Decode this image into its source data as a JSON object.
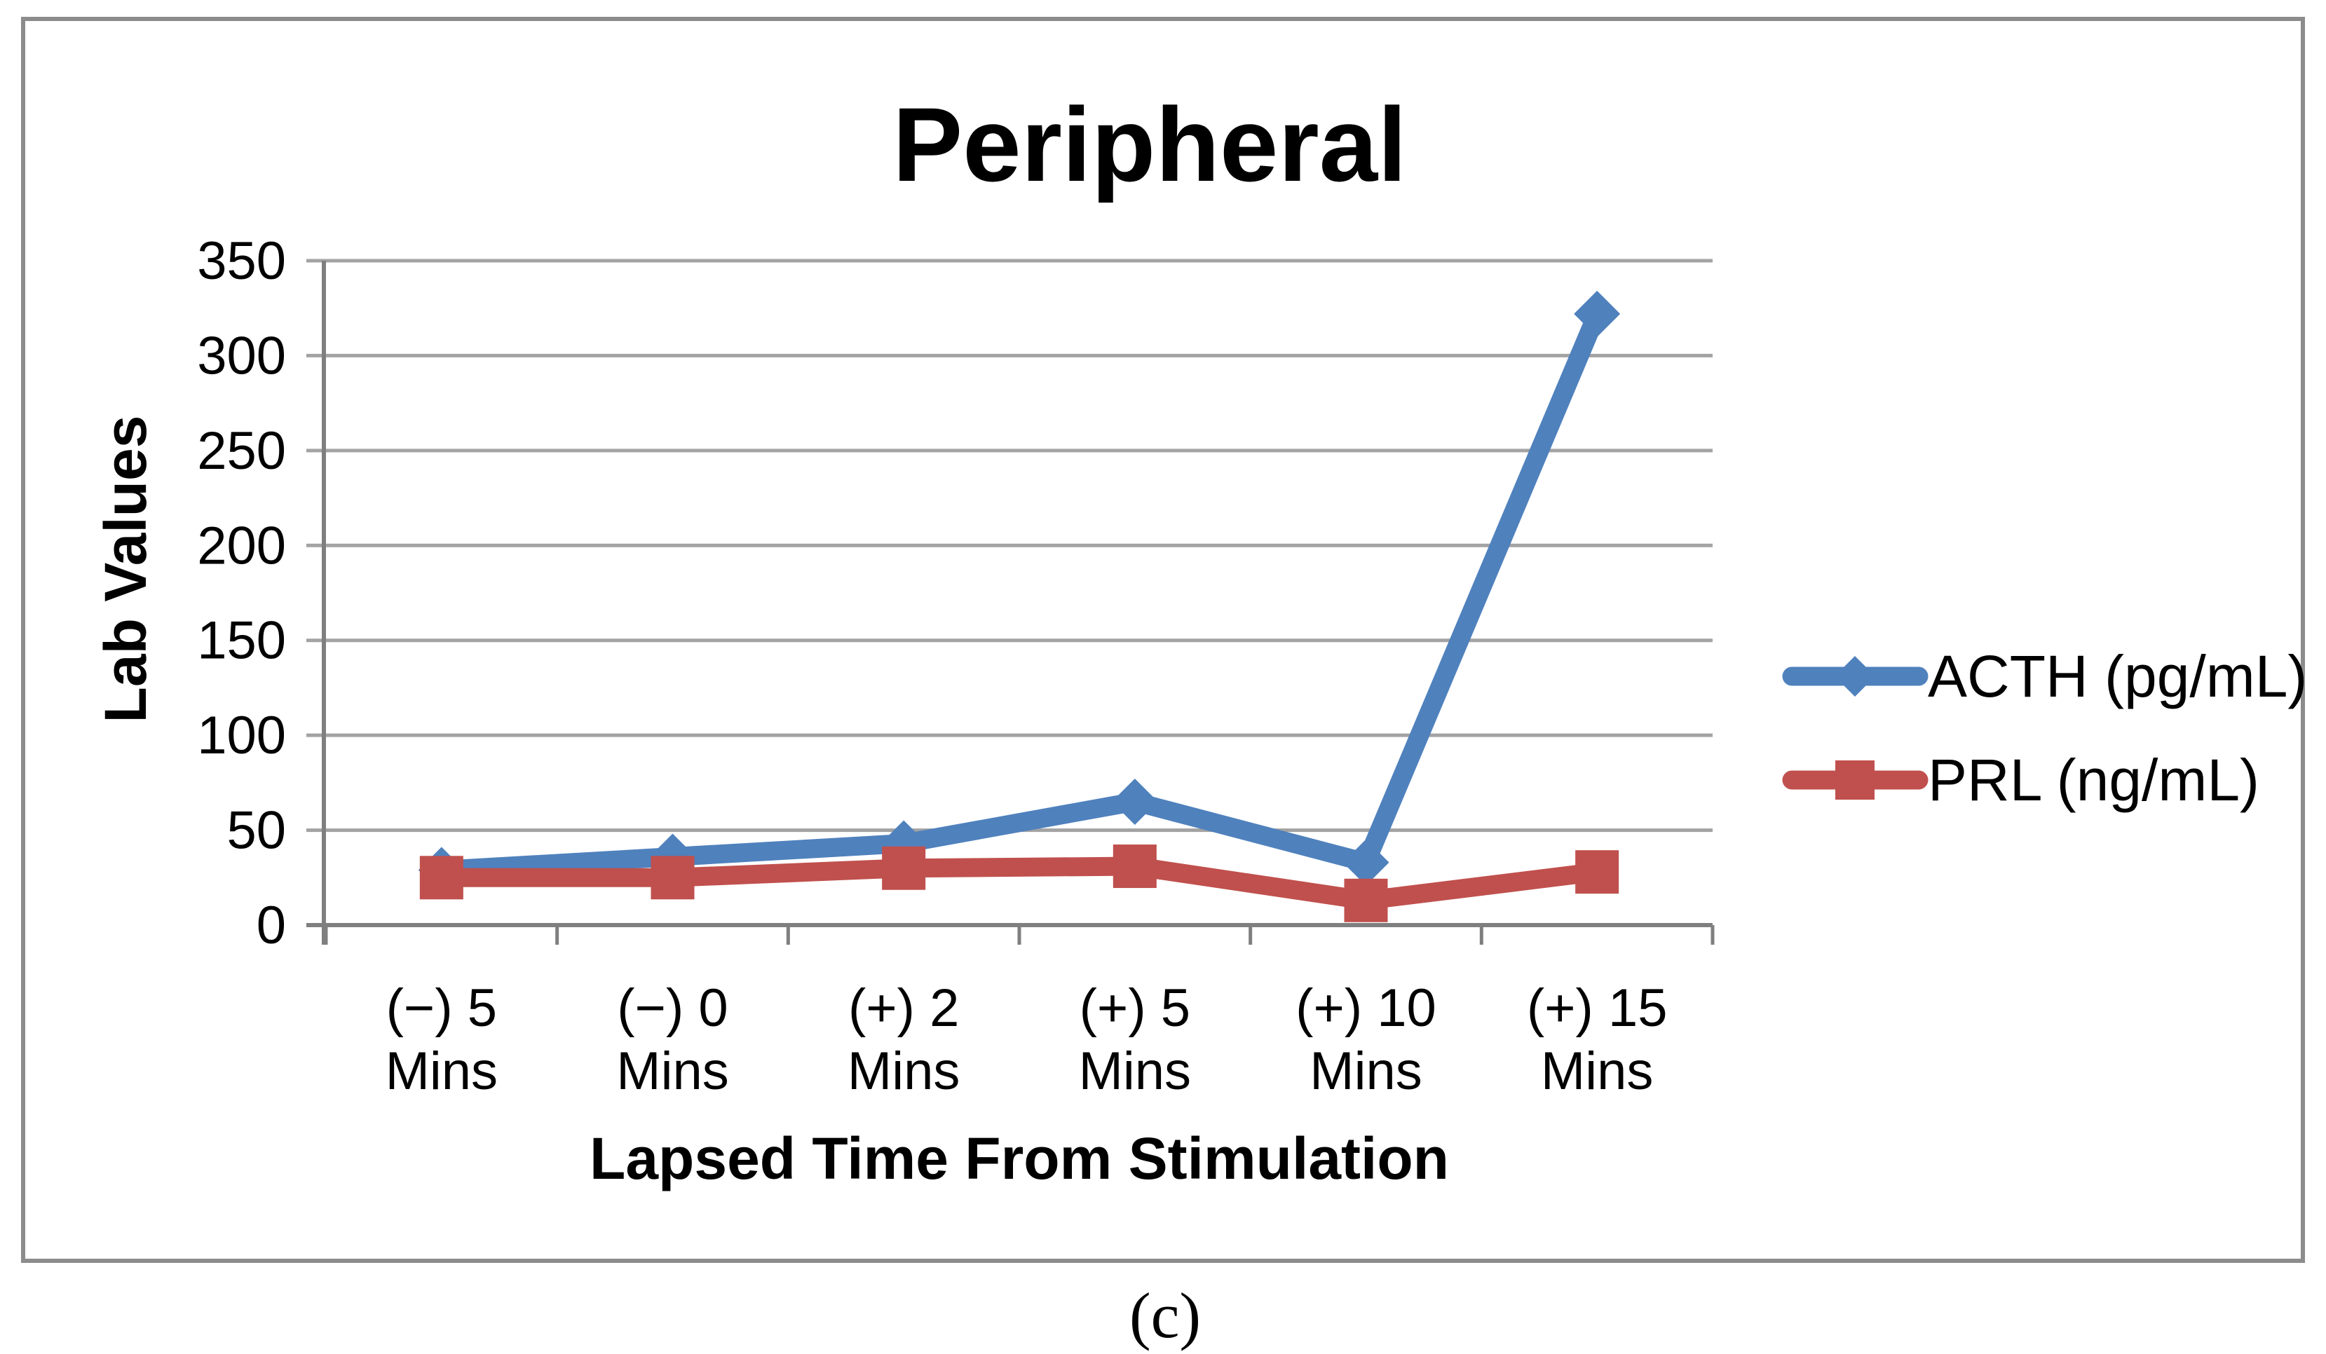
{
  "chart": {
    "caption": "(c)"
  },
  "chart_data": {
    "type": "line",
    "title": "Peripheral",
    "xlabel": "Lapsed Time From Stimulation",
    "ylabel": "Lab Values",
    "categories": [
      {
        "line1": "(−) 5",
        "line2": "Mins"
      },
      {
        "line1": "(−) 0",
        "line2": "Mins"
      },
      {
        "line1": "(+) 2",
        "line2": "Mins"
      },
      {
        "line1": "(+) 5",
        "line2": "Mins"
      },
      {
        "line1": "(+) 10",
        "line2": "Mins"
      },
      {
        "line1": "(+) 15",
        "line2": "Mins"
      }
    ],
    "series": [
      {
        "name": "ACTH (pg/mL)",
        "id": "acth",
        "color": "#4F81BD",
        "marker": "diamond",
        "values": [
          29,
          36,
          43,
          65,
          33,
          322
        ]
      },
      {
        "name": "PRL (ng/mL)",
        "id": "prl",
        "color": "#C0504D",
        "marker": "square",
        "values": [
          25,
          25,
          30,
          31,
          13,
          28
        ]
      }
    ],
    "ylim": [
      0,
      350
    ],
    "ytick_step": 50,
    "grid": true,
    "legend_position": "right"
  },
  "colors": {
    "grid": "#A3A3A3",
    "axis": "#7F7F7F",
    "frame": "#8C8C8C",
    "series_blue": "#4F81BD",
    "series_red": "#C0504D",
    "background": "#FFFFFF",
    "text": "#000000"
  }
}
